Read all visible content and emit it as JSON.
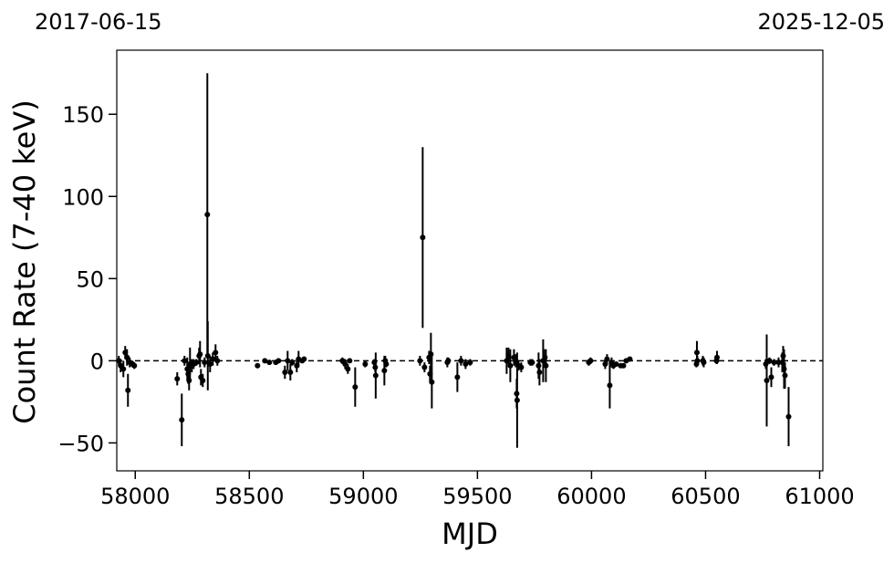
{
  "chart_data": {
    "type": "scatter",
    "title": "",
    "xlabel": "MJD",
    "ylabel": "Count Rate (7-40 keV)",
    "top_labels": {
      "left": "2017-06-15",
      "right": "2025-12-05"
    },
    "xlim": [
      57919,
      61014
    ],
    "ylim": [
      -67,
      189
    ],
    "xticks": [
      58000,
      58500,
      59000,
      59500,
      60000,
      60500,
      61000
    ],
    "xtick_labels": [
      "58000",
      "58500",
      "59000",
      "59500",
      "60000",
      "60500",
      "61000"
    ],
    "yticks": [
      -50,
      0,
      50,
      100,
      150
    ],
    "ytick_labels": [
      "−50",
      "0",
      "50",
      "100",
      "150"
    ],
    "reference_line": {
      "y": 0,
      "style": "dashed"
    },
    "grid": false,
    "colors": {
      "points": "#000000",
      "reference_line": "#000000"
    },
    "series": [
      {
        "x": [
          57928,
          57936,
          57948,
          57956,
          57964,
          57968,
          57976,
          57988,
          57996,
          58184,
          58204,
          58216,
          58228,
          58232,
          58236,
          58240,
          58248,
          58256,
          58268,
          58280,
          58284,
          58288,
          58296,
          58304,
          58316,
          58318,
          58328,
          58340,
          58352,
          58360,
          58536,
          58568,
          58588,
          58616,
          58628,
          58656,
          58668,
          58680,
          58688,
          58708,
          58716,
          58732,
          58740,
          58908,
          58920,
          58932,
          58940,
          58964,
          59008,
          59048,
          59052,
          59054,
          59092,
          59096,
          59100,
          59248,
          59260,
          59268,
          59288,
          59292,
          59296,
          59300,
          59368,
          59372,
          59412,
          59428,
          59448,
          59468,
          59628,
          59636,
          59644,
          59660,
          59668,
          59672,
          59674,
          59680,
          59692,
          59732,
          59740,
          59768,
          59772,
          59788,
          59796,
          59800,
          59988,
          59996,
          60060,
          60068,
          60080,
          60088,
          60096,
          60108,
          60128,
          60140,
          60152,
          60168,
          60460,
          60462,
          60464,
          60488,
          60492,
          60548,
          60550,
          60764,
          60768,
          60780,
          60788,
          60800,
          60820,
          60836,
          60840,
          60844,
          60848,
          60864
        ],
        "y": [
          0,
          -3,
          -5,
          5,
          2,
          -18,
          -1,
          -2,
          -3,
          -11,
          -36,
          0,
          -5,
          -8,
          -12,
          -2,
          -3,
          -2,
          -1,
          3,
          4,
          -10,
          -12,
          -1,
          89,
          3,
          -2,
          1,
          5,
          0,
          -3,
          0,
          -1,
          -1,
          0,
          -7,
          0,
          -7,
          -1,
          -3,
          1,
          0,
          1,
          0,
          -2,
          -5,
          0,
          -16,
          -2,
          -1,
          -4,
          -9,
          -6,
          0,
          -2,
          0,
          75,
          -4,
          2,
          -8,
          4,
          -13,
          -1,
          0,
          -10,
          0,
          -2,
          -1,
          0,
          3,
          -3,
          2,
          0,
          -20,
          -24,
          -3,
          -4,
          -1,
          -1,
          -3,
          -7,
          0,
          2,
          -3,
          -1,
          0,
          -2,
          1,
          -15,
          -1,
          -3,
          -2,
          -3,
          -3,
          0,
          1,
          -2,
          5,
          0,
          0,
          -1,
          0,
          2,
          -2,
          -12,
          0,
          -10,
          -1,
          -1,
          -1,
          3,
          -5,
          -9,
          -34
        ],
        "yerr": [
          3,
          4,
          5,
          4,
          5,
          10,
          3,
          2,
          2,
          4,
          16,
          3,
          7,
          6,
          6,
          10,
          4,
          3,
          2,
          5,
          8,
          5,
          4,
          3,
          86,
          21,
          5,
          4,
          5,
          3,
          1,
          1,
          1,
          1,
          1,
          4,
          6,
          5,
          2,
          4,
          5,
          1,
          1,
          2,
          3,
          3,
          1,
          12,
          2,
          2,
          3,
          14,
          9,
          3,
          2,
          3,
          55,
          3,
          4,
          5,
          13,
          16,
          3,
          2,
          9,
          3,
          3,
          2,
          8,
          5,
          10,
          5,
          4,
          9,
          29,
          3,
          3,
          2,
          2,
          8,
          8,
          13,
          5,
          10,
          2,
          2,
          3,
          3,
          14,
          3,
          2,
          1,
          1,
          1,
          1,
          1,
          2,
          7,
          3,
          3,
          3,
          2,
          4,
          3,
          28,
          2,
          6,
          2,
          3,
          6,
          6,
          12,
          8,
          18
        ]
      }
    ]
  }
}
